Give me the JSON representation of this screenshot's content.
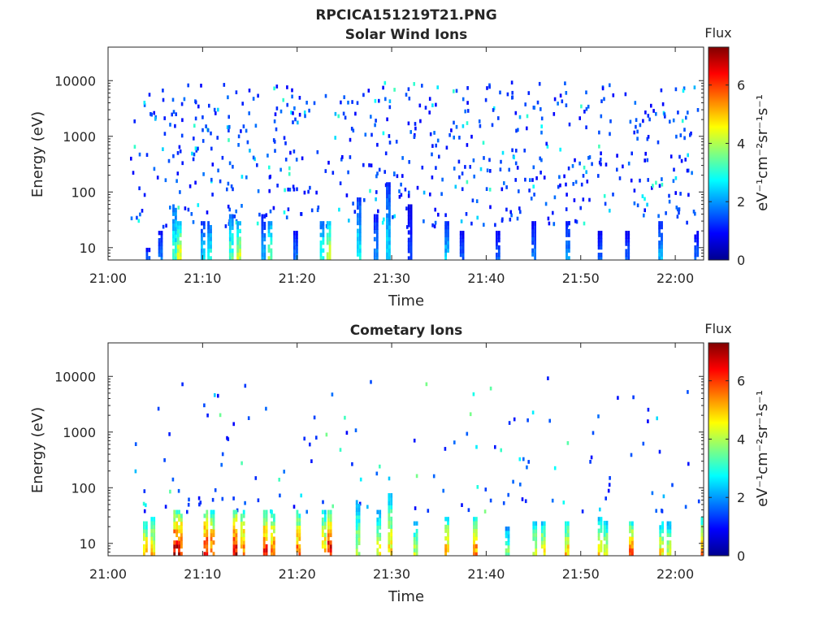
{
  "figure_title": "RPCICA151219T21.PNG",
  "colormap": [
    "#00008f",
    "#0000ff",
    "#0080ff",
    "#00ffff",
    "#80ff80",
    "#ffff00",
    "#ff8000",
    "#ff0000",
    "#800000"
  ],
  "chart_data": [
    {
      "type": "heatmap",
      "title": "Solar Wind Ions",
      "xlabel": "Time",
      "ylabel": "Energy (eV)",
      "x_ticks": [
        "21:00",
        "21:10",
        "21:20",
        "21:30",
        "21:40",
        "21:50",
        "22:00"
      ],
      "xlim_minutes": [
        0,
        63
      ],
      "y_scale": "log",
      "y_ticks": [
        10,
        100,
        1000,
        10000
      ],
      "y_tick_labels": [
        "10",
        "100",
        "1000",
        "10000"
      ],
      "ylim": [
        6,
        40000
      ],
      "colorbar": {
        "title": "Flux",
        "units": "eV⁻¹cm⁻²sr⁻¹s⁻¹",
        "range": [
          0,
          7.3
        ],
        "ticks": [
          0,
          2,
          4,
          6
        ],
        "tick_labels": [
          "0",
          "2",
          "4",
          "6"
        ]
      },
      "low_energy_columns": [
        {
          "t": 4.0,
          "peak": 1.5,
          "top": 10
        },
        {
          "t": 5.3,
          "peak": 1.8,
          "top": 20
        },
        {
          "t": 6.8,
          "peak": 3.2,
          "top": 60
        },
        {
          "t": 7.3,
          "peak": 4.6,
          "top": 30
        },
        {
          "t": 9.8,
          "peak": 2.5,
          "top": 30
        },
        {
          "t": 10.5,
          "peak": 3.0,
          "top": 30
        },
        {
          "t": 12.8,
          "peak": 3.4,
          "top": 40
        },
        {
          "t": 13.6,
          "peak": 4.2,
          "top": 30
        },
        {
          "t": 16.2,
          "peak": 2.2,
          "top": 40
        },
        {
          "t": 16.9,
          "peak": 3.8,
          "top": 30
        },
        {
          "t": 19.6,
          "peak": 1.8,
          "top": 20
        },
        {
          "t": 22.4,
          "peak": 3.2,
          "top": 30
        },
        {
          "t": 23.1,
          "peak": 4.4,
          "top": 30
        },
        {
          "t": 26.3,
          "peak": 2.8,
          "top": 80
        },
        {
          "t": 28.1,
          "peak": 2.0,
          "top": 40
        },
        {
          "t": 29.4,
          "peak": 2.6,
          "top": 150
        },
        {
          "t": 31.7,
          "peak": 1.4,
          "top": 60
        },
        {
          "t": 35.6,
          "peak": 2.4,
          "top": 30
        },
        {
          "t": 37.2,
          "peak": 1.6,
          "top": 20
        },
        {
          "t": 41.0,
          "peak": 1.6,
          "top": 20
        },
        {
          "t": 44.8,
          "peak": 1.8,
          "top": 30
        },
        {
          "t": 48.4,
          "peak": 2.0,
          "top": 30
        },
        {
          "t": 51.8,
          "peak": 1.6,
          "top": 20
        },
        {
          "t": 54.7,
          "peak": 1.6,
          "top": 20
        },
        {
          "t": 58.2,
          "peak": 2.2,
          "top": 30
        },
        {
          "t": 62.0,
          "peak": 1.6,
          "top": 20
        }
      ]
    },
    {
      "type": "heatmap",
      "title": "Cometary Ions",
      "xlabel": "Time",
      "ylabel": "Energy (eV)",
      "x_ticks": [
        "21:00",
        "21:10",
        "21:20",
        "21:30",
        "21:40",
        "21:50",
        "22:00"
      ],
      "xlim_minutes": [
        0,
        63
      ],
      "y_scale": "log",
      "y_ticks": [
        10,
        100,
        1000,
        10000
      ],
      "y_tick_labels": [
        "10",
        "100",
        "1000",
        "10000"
      ],
      "ylim": [
        6,
        40000
      ],
      "colorbar": {
        "title": "Flux",
        "units": "eV⁻¹cm⁻²sr⁻¹s⁻¹",
        "range": [
          0,
          7.3
        ],
        "ticks": [
          0,
          2,
          4,
          6
        ],
        "tick_labels": [
          "0",
          "2",
          "4",
          "6"
        ]
      },
      "low_energy_columns": [
        {
          "t": 3.7,
          "peak": 5.4,
          "top": 25
        },
        {
          "t": 4.5,
          "peak": 5.0,
          "top": 30
        },
        {
          "t": 6.9,
          "peak": 6.9,
          "top": 40
        },
        {
          "t": 7.4,
          "peak": 6.6,
          "top": 40
        },
        {
          "t": 10.1,
          "peak": 6.7,
          "top": 40
        },
        {
          "t": 10.8,
          "peak": 6.0,
          "top": 40
        },
        {
          "t": 13.2,
          "peak": 6.9,
          "top": 40
        },
        {
          "t": 14.0,
          "peak": 5.8,
          "top": 40
        },
        {
          "t": 16.4,
          "peak": 6.3,
          "top": 40
        },
        {
          "t": 17.2,
          "peak": 5.6,
          "top": 40
        },
        {
          "t": 19.9,
          "peak": 5.8,
          "top": 40
        },
        {
          "t": 22.6,
          "peak": 5.2,
          "top": 40
        },
        {
          "t": 23.2,
          "peak": 6.8,
          "top": 40
        },
        {
          "t": 26.2,
          "peak": 4.2,
          "top": 60
        },
        {
          "t": 28.4,
          "peak": 4.4,
          "top": 40
        },
        {
          "t": 29.6,
          "peak": 4.8,
          "top": 80
        },
        {
          "t": 32.3,
          "peak": 4.2,
          "top": 25
        },
        {
          "t": 35.6,
          "peak": 5.4,
          "top": 30
        },
        {
          "t": 38.6,
          "peak": 5.6,
          "top": 30
        },
        {
          "t": 42.0,
          "peak": 3.8,
          "top": 20
        },
        {
          "t": 44.9,
          "peak": 4.6,
          "top": 25
        },
        {
          "t": 45.8,
          "peak": 4.8,
          "top": 25
        },
        {
          "t": 48.3,
          "peak": 5.2,
          "top": 25
        },
        {
          "t": 51.8,
          "peak": 5.0,
          "top": 30
        },
        {
          "t": 52.4,
          "peak": 4.4,
          "top": 30
        },
        {
          "t": 55.1,
          "peak": 5.8,
          "top": 25
        },
        {
          "t": 58.3,
          "peak": 4.8,
          "top": 25
        },
        {
          "t": 59.1,
          "peak": 4.4,
          "top": 25
        },
        {
          "t": 62.7,
          "peak": 5.5,
          "top": 30
        }
      ]
    }
  ]
}
